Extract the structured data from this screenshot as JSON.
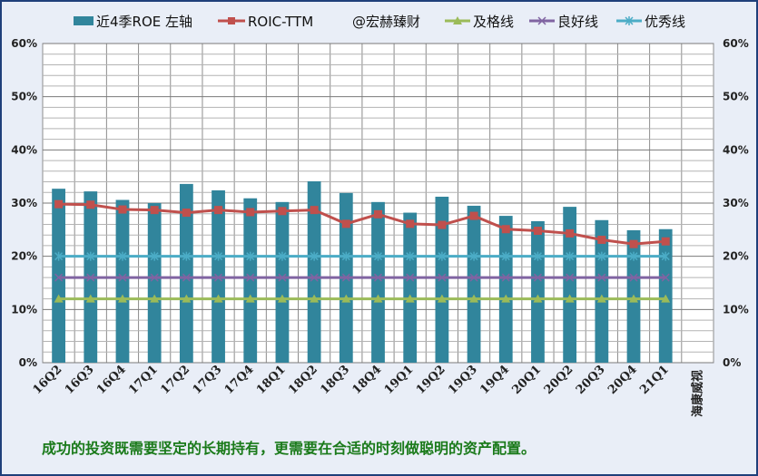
{
  "chart_data": {
    "type": "bar",
    "categories": [
      "16Q2",
      "16Q3",
      "16Q4",
      "17Q1",
      "17Q2",
      "17Q3",
      "17Q4",
      "18Q1",
      "18Q2",
      "18Q3",
      "18Q4",
      "19Q1",
      "19Q2",
      "19Q3",
      "19Q4",
      "20Q1",
      "20Q2",
      "20Q3",
      "20Q4",
      "21Q1"
    ],
    "extra_category_label": "海康威视",
    "ylim": [
      0,
      60
    ],
    "yticks": [
      "0%",
      "10%",
      "20%",
      "30%",
      "40%",
      "50%",
      "60%"
    ],
    "y2ticks": [
      "0%",
      "10%",
      "20%",
      "30%",
      "40%",
      "50%",
      "60%"
    ],
    "grid": true,
    "legend_position": "top",
    "series": [
      {
        "name": "近4季ROE 左轴",
        "kind": "bar",
        "color": "#31859c",
        "values": [
          32.7,
          32.2,
          30.6,
          30.0,
          33.6,
          32.4,
          30.9,
          30.2,
          34.1,
          31.9,
          30.2,
          28.2,
          31.2,
          29.5,
          27.6,
          26.6,
          29.3,
          26.8,
          24.9,
          25.1
        ]
      },
      {
        "name": "ROIC-TTM",
        "kind": "line",
        "color": "#c0504d",
        "marker": "square",
        "values": [
          29.8,
          29.7,
          28.8,
          28.7,
          28.2,
          28.7,
          28.3,
          28.5,
          28.7,
          26.1,
          27.9,
          26.1,
          25.9,
          27.6,
          25.1,
          24.8,
          24.3,
          23.1,
          22.3,
          22.8
        ]
      },
      {
        "name": "及格线",
        "kind": "line",
        "color": "#9bbb59",
        "marker": "triangle",
        "values": [
          12,
          12,
          12,
          12,
          12,
          12,
          12,
          12,
          12,
          12,
          12,
          12,
          12,
          12,
          12,
          12,
          12,
          12,
          12,
          12
        ]
      },
      {
        "name": "良好线",
        "kind": "line",
        "color": "#8064a2",
        "marker": "x",
        "values": [
          16,
          16,
          16,
          16,
          16,
          16,
          16,
          16,
          16,
          16,
          16,
          16,
          16,
          16,
          16,
          16,
          16,
          16,
          16,
          16
        ]
      },
      {
        "name": "优秀线",
        "kind": "line",
        "color": "#4bacc6",
        "marker": "star",
        "values": [
          20,
          20,
          20,
          20,
          20,
          20,
          20,
          20,
          20,
          20,
          20,
          20,
          20,
          20,
          20,
          20,
          20,
          20,
          20,
          20
        ]
      }
    ]
  },
  "legend": {
    "items": [
      "近4季ROE 左轴",
      "ROIC-TTM",
      "@宏赫臻财",
      "及格线",
      "良好线",
      "优秀线"
    ]
  },
  "footer": {
    "text": "成功的投资既需要坚定的长期持有，更需要在合适的时刻做聪明的资产配置。"
  }
}
